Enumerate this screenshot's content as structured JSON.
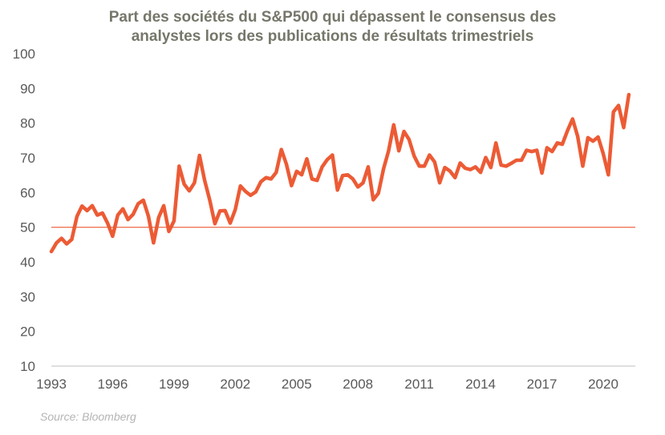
{
  "chart_data": {
    "type": "line",
    "title": "Part des sociétés du S&P500 qui dépassent le consensus des analystes lors des publications de résultats trimestriels",
    "title_lines": [
      "Part des sociétés du S&P500 qui dépassent le consensus des",
      "analystes lors des publications de résultats trimestriels"
    ],
    "source": "Source: Bloomberg",
    "xlabel": "",
    "ylabel": "",
    "xlim": [
      1993,
      2021.5
    ],
    "ylim": [
      10,
      100
    ],
    "x_ticks": [
      "1993",
      "1996",
      "1999",
      "2002",
      "2005",
      "2008",
      "2011",
      "2014",
      "2017",
      "2020"
    ],
    "y_ticks": [
      "10",
      "20",
      "30",
      "40",
      "50",
      "60",
      "70",
      "80",
      "90",
      "100"
    ],
    "grid": false,
    "reference_line": 50,
    "colors": {
      "line": "#EC5B35",
      "reference": "#EC5B35",
      "title": "#76766a",
      "axis_text": "#595959"
    },
    "series": [
      {
        "x": [
          1993,
          1993.25,
          1993.5,
          1993.75,
          1994,
          1994.25,
          1994.5,
          1994.75,
          1995,
          1995.25,
          1995.5,
          1995.75,
          1996,
          1996.25,
          1996.5,
          1996.75,
          1997,
          1997.25,
          1997.5,
          1997.75,
          1998,
          1998.25,
          1998.5,
          1998.75,
          1999,
          1999.25,
          1999.5,
          1999.75,
          2000,
          2000.25,
          2000.5,
          2000.75,
          2001,
          2001.25,
          2001.5,
          2001.75,
          2002,
          2002.25,
          2002.5,
          2002.75,
          2003,
          2003.25,
          2003.5,
          2003.75,
          2004,
          2004.25,
          2004.5,
          2004.75,
          2005,
          2005.25,
          2005.5,
          2005.75,
          2006,
          2006.25,
          2006.5,
          2006.75,
          2007,
          2007.25,
          2007.5,
          2007.75,
          2008,
          2008.25,
          2008.5,
          2008.75,
          2009,
          2009.25,
          2009.5,
          2009.75,
          2010,
          2010.25,
          2010.5,
          2010.75,
          2011,
          2011.25,
          2011.5,
          2011.75,
          2012,
          2012.25,
          2012.5,
          2012.75,
          2013,
          2013.25,
          2013.5,
          2013.75,
          2014,
          2014.25,
          2014.5,
          2014.75,
          2015,
          2015.25,
          2015.5,
          2015.75,
          2016,
          2016.25,
          2016.5,
          2016.75,
          2017,
          2017.25,
          2017.5,
          2017.75,
          2018,
          2018.25,
          2018.5,
          2018.75,
          2019,
          2019.25,
          2019.5,
          2019.75,
          2020,
          2020.25,
          2020.5,
          2020.75,
          2021,
          2021.25
        ],
        "values": [
          43.0,
          45.5,
          46.8,
          45.2,
          46.5,
          53.1,
          56.1,
          54.8,
          56.2,
          53.5,
          54.1,
          51.2,
          47.4,
          53.5,
          55.3,
          52.2,
          53.7,
          56.8,
          57.8,
          53.2,
          45.5,
          52.8,
          56.2,
          48.8,
          51.8,
          67.6,
          62.4,
          60.5,
          62.8,
          70.7,
          63.5,
          57.8,
          51.0,
          54.7,
          54.8,
          51.2,
          55.1,
          61.9,
          60.3,
          59.2,
          60.2,
          63.1,
          64.3,
          63.9,
          65.8,
          72.4,
          68.2,
          62.0,
          66.1,
          65.1,
          69.7,
          63.9,
          63.5,
          67.4,
          69.5,
          70.8,
          60.7,
          64.9,
          65.1,
          63.9,
          61.6,
          62.8,
          67.4,
          57.9,
          59.8,
          66.8,
          72.0,
          79.5,
          72.0,
          77.6,
          75.3,
          70.5,
          67.6,
          67.6,
          70.8,
          68.8,
          62.8,
          67.2,
          66.2,
          64.3,
          68.5,
          67.0,
          66.6,
          67.4,
          65.8,
          70.1,
          67.2,
          74.3,
          67.9,
          67.6,
          68.4,
          69.3,
          69.3,
          72.2,
          71.8,
          72.2,
          65.6,
          72.9,
          71.8,
          74.3,
          73.9,
          77.8,
          81.2,
          76.2,
          67.6,
          75.8,
          74.8,
          76.0,
          71.2,
          65.1,
          83.2,
          85.1,
          78.7,
          88.2
        ]
      }
    ]
  }
}
